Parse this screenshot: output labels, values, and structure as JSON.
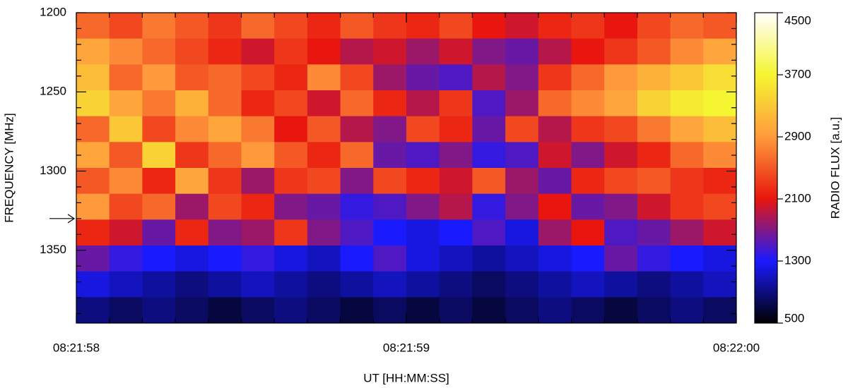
{
  "chart_data": {
    "type": "heatmap",
    "xlabel": "UT [HH:MM:SS]",
    "ylabel": "FREQUENCY [MHz]",
    "colorbar_label": "RADIO FLUX [a.u.]",
    "xlim": [
      "08:21:58",
      "08:22:00"
    ],
    "xticks": [
      "08:21:58",
      "08:21:59",
      "08:22:00"
    ],
    "ylim": [
      1200,
      1396
    ],
    "yticks": [
      1200,
      1250,
      1300,
      1350
    ],
    "clim": [
      500,
      4500
    ],
    "cticks": [
      500,
      1300,
      2100,
      2900,
      3700,
      4500
    ],
    "colormap": [
      "#000000",
      "#1a1aff",
      "#e8160e",
      "#ff9a3c",
      "#f5f531",
      "#ffffff"
    ],
    "minor_ticks": true,
    "arrow_at": 1330,
    "z": [
      [
        2600,
        2400,
        2700,
        2500,
        2300,
        2600,
        2400,
        2200,
        2500,
        2300,
        2200,
        2400,
        2100,
        2000,
        2200,
        2300,
        2100,
        2400,
        2600,
        2500
      ],
      [
        3000,
        2800,
        2600,
        2400,
        2200,
        2000,
        2300,
        2100,
        1900,
        2000,
        1800,
        2000,
        1700,
        1600,
        1900,
        2100,
        2300,
        2500,
        2800,
        3000
      ],
      [
        3200,
        2600,
        2900,
        2500,
        2600,
        2400,
        2200,
        2800,
        2400,
        1800,
        1600,
        1500,
        1900,
        1700,
        2300,
        2600,
        2900,
        3100,
        3300,
        3500
      ],
      [
        3400,
        3000,
        2700,
        3100,
        2600,
        2200,
        2400,
        2000,
        2600,
        2200,
        1900,
        2300,
        1500,
        1800,
        2600,
        2800,
        3000,
        3400,
        3600,
        3700
      ],
      [
        2600,
        3300,
        2400,
        2800,
        3000,
        2700,
        2100,
        2500,
        1900,
        1700,
        2400,
        2200,
        1600,
        2400,
        1900,
        2300,
        2400,
        2700,
        3000,
        3200
      ],
      [
        3000,
        2500,
        3400,
        2300,
        2600,
        2900,
        2500,
        2200,
        2600,
        1600,
        1500,
        1700,
        1400,
        1500,
        2000,
        1700,
        2000,
        2200,
        2600,
        2800
      ],
      [
        2500,
        2800,
        2200,
        3000,
        2300,
        1800,
        2300,
        2400,
        1700,
        2400,
        2200,
        2000,
        2500,
        1800,
        1600,
        2200,
        2400,
        2500,
        2300,
        2200
      ],
      [
        2900,
        2400,
        2600,
        1800,
        2400,
        2200,
        1700,
        1600,
        1400,
        1500,
        1700,
        1900,
        1400,
        1700,
        2100,
        1600,
        1700,
        2000,
        2300,
        2400
      ],
      [
        2200,
        2000,
        1600,
        2200,
        1700,
        1800,
        2300,
        1700,
        1500,
        1300,
        1200,
        1300,
        1500,
        1200,
        1800,
        2100,
        1500,
        1600,
        1800,
        2000
      ],
      [
        1600,
        1400,
        1300,
        1200,
        1300,
        1400,
        1200,
        1100,
        1300,
        1500,
        1200,
        1100,
        1000,
        1100,
        1200,
        1300,
        1600,
        1400,
        1300,
        1200
      ],
      [
        1200,
        1100,
        1000,
        900,
        1000,
        1100,
        1000,
        900,
        1000,
        1100,
        1000,
        900,
        800,
        900,
        1000,
        1100,
        1000,
        900,
        1000,
        1100
      ],
      [
        900,
        800,
        900,
        800,
        700,
        800,
        900,
        800,
        700,
        800,
        700,
        800,
        700,
        800,
        900,
        800,
        700,
        800,
        900,
        800
      ]
    ]
  }
}
